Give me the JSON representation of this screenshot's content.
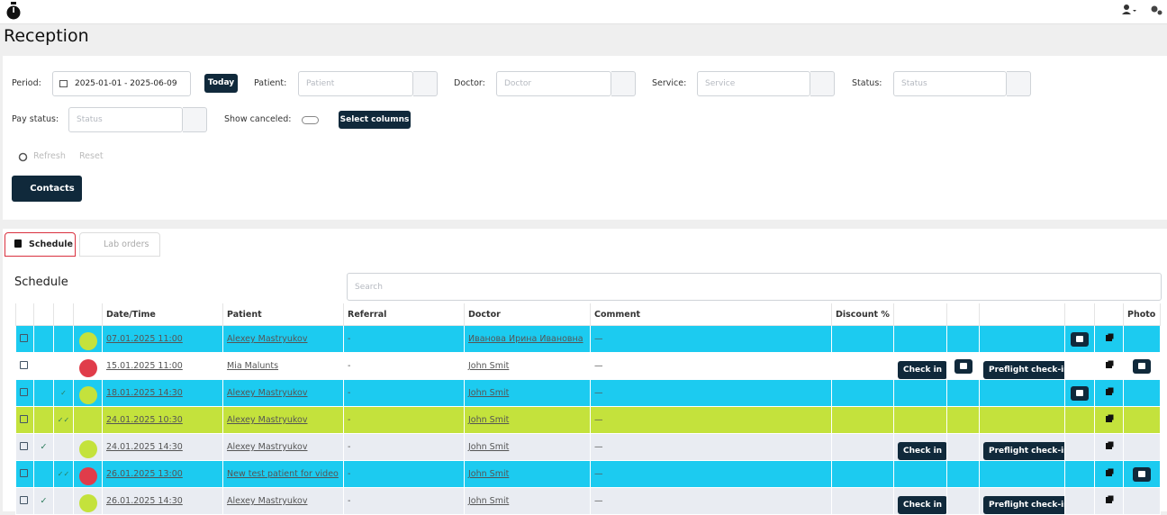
{
  "header": {
    "title": "Reception"
  },
  "filters": {
    "period_label": "Period:",
    "period_value": "2025-01-01 - 2025-06-09",
    "today": "Today",
    "patient_label": "Patient:",
    "patient_placeholder": "Patient",
    "doctor_label": "Doctor:",
    "doctor_placeholder": "Doctor",
    "service_label": "Service:",
    "service_placeholder": "Service",
    "status_label": "Status:",
    "status_placeholder": "Status",
    "pay_status_label": "Pay status:",
    "pay_status_placeholder": "Status",
    "show_canceled_label": "Show canceled:",
    "select_columns": "Select columns -",
    "refresh": "Refresh",
    "reset": "Reset",
    "contacts": "Contacts"
  },
  "tabs": [
    "Schedule",
    "Lab orders"
  ],
  "schedule": {
    "title": "Schedule",
    "search_placeholder": "Search",
    "columns": [
      "Date/Time",
      "Patient",
      "Referral",
      "Doctor",
      "Comment",
      "Discount %",
      "Photo"
    ],
    "rows": [
      {
        "row_color": "#1ccbf0",
        "status_color": "#c4e23c",
        "date": "07.01.2025 11:00",
        "patient": "Alexey Mastryukov",
        "referral": "-",
        "doctor": "Иванова Ирина Ивановна",
        "comment": "—"
      },
      {
        "row_color": "#ffffff",
        "status_color": "#e03c4a",
        "date": "15.01.2025 11:00",
        "patient": "Mia Malunts",
        "referral": "-",
        "doctor": "John Smit",
        "comment": "—",
        "check_in": "Check in",
        "preflight": "Preflight check-in"
      },
      {
        "row_color": "#1ccbf0",
        "status_color": "#c4e23c",
        "date": "18.01.2025 14:30",
        "patient": "Alexey Mastryukov",
        "referral": "-",
        "doctor": "John Smit",
        "comment": "—"
      },
      {
        "row_color": "#c4e23c",
        "date": "24.01.2025 10:30",
        "patient": "Alexey Mastryukov",
        "referral": "-",
        "doctor": "John Smit",
        "comment": "—"
      },
      {
        "row_color": "#e9ecf2",
        "status_color": "#c4e23c",
        "date": "24.01.2025 14:30",
        "patient": "Alexey Mastryukov",
        "referral": "-",
        "doctor": "John Smit",
        "comment": "—",
        "check_in": "Check in",
        "preflight": "Preflight check-in"
      },
      {
        "row_color": "#1ccbf0",
        "status_color": "#e03c4a",
        "date": "26.01.2025 13:00",
        "patient": "New test patient for video",
        "referral": "-",
        "doctor": "John Smit",
        "comment": "—"
      },
      {
        "row_color": "#e9ecf2",
        "status_color": "#c4e23c",
        "date": "26.01.2025 14:30",
        "patient": "Alexey Mastryukov",
        "referral": "-",
        "doctor": "John Smit",
        "comment": "—",
        "check_in": "Check in",
        "preflight": "Preflight check-in"
      }
    ]
  }
}
